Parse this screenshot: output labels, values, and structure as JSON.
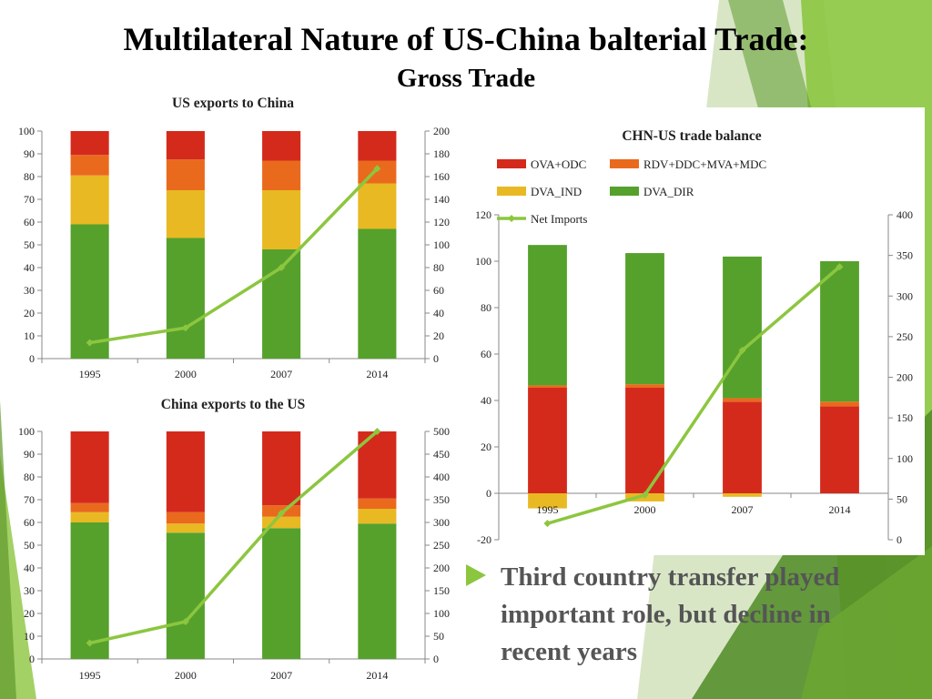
{
  "slide": {
    "title": "Multilateral Nature of US-China balterial Trade:",
    "subtitle": "Gross Trade",
    "bullet": "Third country transfer played important role, but decline in recent years"
  },
  "colors": {
    "OVA+ODC": "#d42a1c",
    "RDV+DDC+MVA+MDC": "#ea6a1d",
    "DVA_IND": "#e8b923",
    "DVA_DIR": "#55a12c",
    "Net Imports": "#8cc63f",
    "accent_green": "#8cc63f",
    "bullet_text": "#555555"
  },
  "chart_data": [
    {
      "id": "us_exports",
      "type": "bar",
      "stacked": true,
      "title": "US exports to China",
      "categories": [
        "1995",
        "2000",
        "2007",
        "2014"
      ],
      "ylim": [
        0,
        100
      ],
      "yticks": [
        0,
        10,
        20,
        30,
        40,
        50,
        60,
        70,
        80,
        90,
        100
      ],
      "y2lim": [
        0,
        200
      ],
      "y2ticks": [
        0,
        20,
        40,
        60,
        80,
        100,
        120,
        140,
        160,
        180,
        200
      ],
      "series": [
        {
          "name": "DVA_DIR",
          "values": [
            59,
            53,
            48,
            57
          ]
        },
        {
          "name": "DVA_IND",
          "values": [
            21.5,
            21,
            26,
            20
          ]
        },
        {
          "name": "RDV+DDC+MVA+MDC",
          "values": [
            9,
            13.5,
            13,
            10
          ]
        },
        {
          "name": "OVA+ODC",
          "values": [
            10.5,
            12.5,
            13,
            13
          ]
        }
      ],
      "line": {
        "name": "Net Imports",
        "axis": "right",
        "values": [
          14,
          27,
          80,
          167
        ]
      },
      "grid": false,
      "legend": "none"
    },
    {
      "id": "china_exports",
      "type": "bar",
      "stacked": true,
      "title": "China exports to the US",
      "categories": [
        "1995",
        "2000",
        "2007",
        "2014"
      ],
      "ylim": [
        0,
        100
      ],
      "yticks": [
        0,
        10,
        20,
        30,
        40,
        50,
        60,
        70,
        80,
        90,
        100
      ],
      "y2lim": [
        0,
        500
      ],
      "y2ticks": [
        0,
        50,
        100,
        150,
        200,
        250,
        300,
        350,
        400,
        450,
        500
      ],
      "series": [
        {
          "name": "DVA_DIR",
          "values": [
            60,
            55.5,
            57.5,
            59.5
          ]
        },
        {
          "name": "DVA_IND",
          "values": [
            4.5,
            4,
            5,
            6.5
          ]
        },
        {
          "name": "RDV+DDC+MVA+MDC",
          "values": [
            4,
            5,
            5,
            4.5
          ]
        },
        {
          "name": "OVA+ODC",
          "values": [
            31.5,
            35.5,
            32.5,
            29.5
          ]
        }
      ],
      "line": {
        "name": "Net Imports",
        "axis": "right",
        "values": [
          35,
          82,
          320,
          500
        ]
      },
      "grid": false,
      "legend": "none"
    },
    {
      "id": "chn_us_balance",
      "type": "bar",
      "stacked": true,
      "title": "CHN-US trade balance",
      "categories": [
        "1995",
        "2000",
        "2007",
        "2014"
      ],
      "ylim": [
        -20,
        120
      ],
      "yticks": [
        -20,
        0,
        20,
        40,
        60,
        80,
        100,
        120
      ],
      "y2lim": [
        0,
        400
      ],
      "y2ticks": [
        0,
        50,
        100,
        150,
        200,
        250,
        300,
        350,
        400
      ],
      "series": [
        {
          "name": "OVA+ODC",
          "values": [
            45.5,
            45.5,
            39.5,
            37.5
          ]
        },
        {
          "name": "RDV+DDC+MVA+MDC",
          "values": [
            1,
            1.5,
            1.5,
            2
          ]
        },
        {
          "name": "DVA_IND",
          "values": [
            -6.5,
            -3.5,
            -1.5,
            0
          ]
        },
        {
          "name": "DVA_DIR",
          "values": [
            60.5,
            56.5,
            61,
            60.5
          ]
        }
      ],
      "line": {
        "name": "Net Imports",
        "axis": "right",
        "values": [
          20,
          55,
          233,
          336
        ]
      },
      "legend_entries": [
        "OVA+ODC",
        "RDV+DDC+MVA+MDC",
        "DVA_IND",
        "DVA_DIR",
        "Net Imports"
      ],
      "grid": false,
      "legend": "top"
    }
  ]
}
